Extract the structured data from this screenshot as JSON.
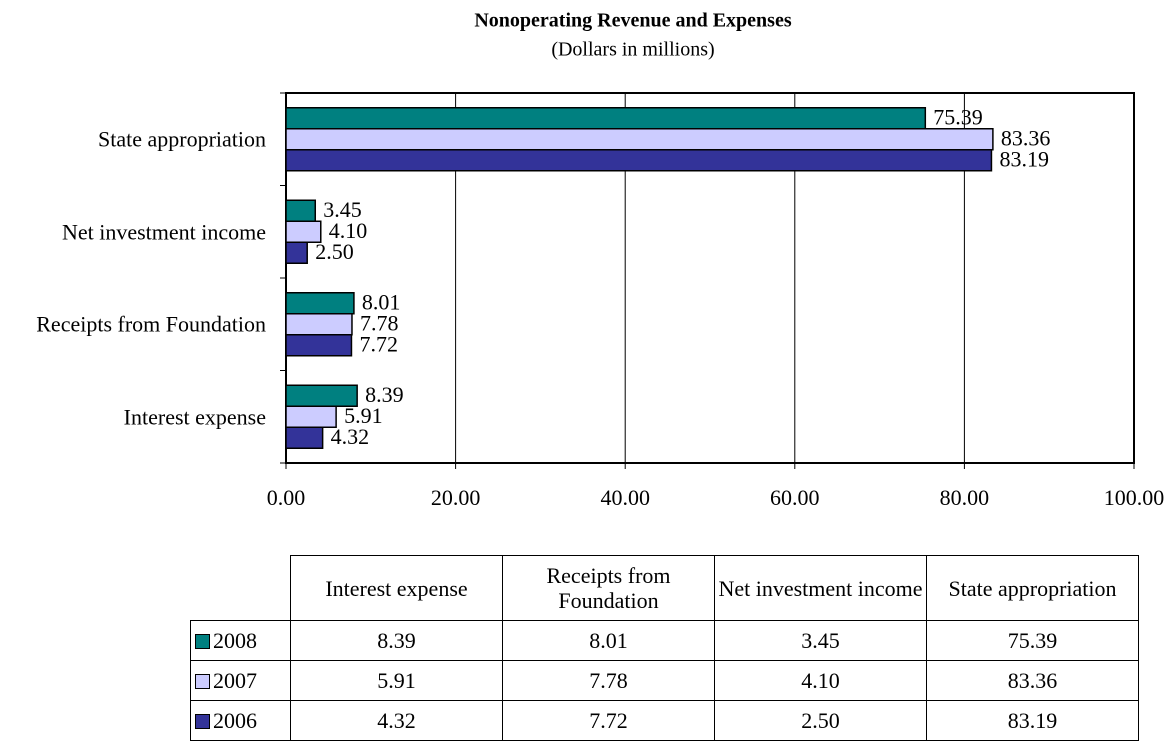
{
  "chart_data": {
    "type": "hbar",
    "title": "Nonoperating Revenue and Expenses",
    "subtitle": "(Dollars in millions)",
    "categories": [
      "Interest expense",
      "Receipts from Foundation",
      "Net investment income",
      "State appropriation"
    ],
    "series": [
      {
        "name": "2008",
        "color": "#008080",
        "values": [
          8.39,
          8.01,
          3.45,
          75.39
        ],
        "value_labels": [
          "8.39",
          "8.01",
          "3.45",
          "75.39"
        ]
      },
      {
        "name": "2007",
        "color": "#ccccff",
        "values": [
          5.91,
          7.78,
          4.1,
          83.36
        ],
        "value_labels": [
          "5.91",
          "7.78",
          "4.10",
          "83.36"
        ]
      },
      {
        "name": "2006",
        "color": "#333399",
        "values": [
          4.32,
          7.72,
          2.5,
          83.19
        ],
        "value_labels": [
          "4.32",
          "7.72",
          "2.50",
          "83.19"
        ]
      }
    ],
    "xlim": [
      0,
      100
    ],
    "xticks": [
      {
        "value": 0,
        "label": "0.00"
      },
      {
        "value": 20,
        "label": "20.00"
      },
      {
        "value": 40,
        "label": "40.00"
      },
      {
        "value": 60,
        "label": "60.00"
      },
      {
        "value": 80,
        "label": "80.00"
      },
      {
        "value": 100,
        "label": "100.00"
      }
    ],
    "grid": true,
    "data_table": true
  }
}
